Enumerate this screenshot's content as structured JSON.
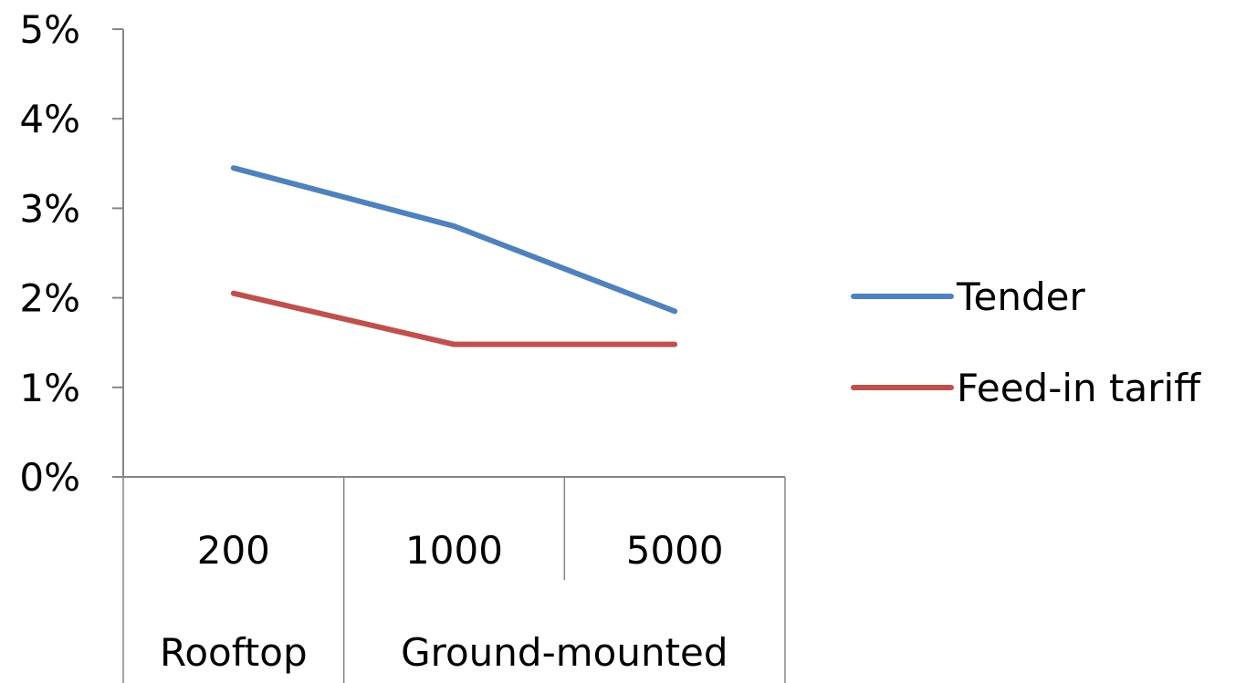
{
  "chart_data": {
    "type": "line",
    "categories": [
      "200",
      "1000",
      "5000"
    ],
    "category_groups": [
      {
        "label": "Rooftop",
        "span": 1
      },
      {
        "label": "Ground-mounted",
        "span": 2
      }
    ],
    "series": [
      {
        "name": "Tender",
        "values": [
          3.45,
          2.8,
          1.85
        ],
        "color": "#4f81bd"
      },
      {
        "name": "Feed-in tariff",
        "values": [
          2.05,
          1.48,
          1.48
        ],
        "color": "#c0504d"
      }
    ],
    "y_ticks": [
      "0%",
      "1%",
      "2%",
      "3%",
      "4%",
      "5%"
    ],
    "ylim": [
      0,
      5
    ],
    "grid": false,
    "legend_position": "right"
  }
}
